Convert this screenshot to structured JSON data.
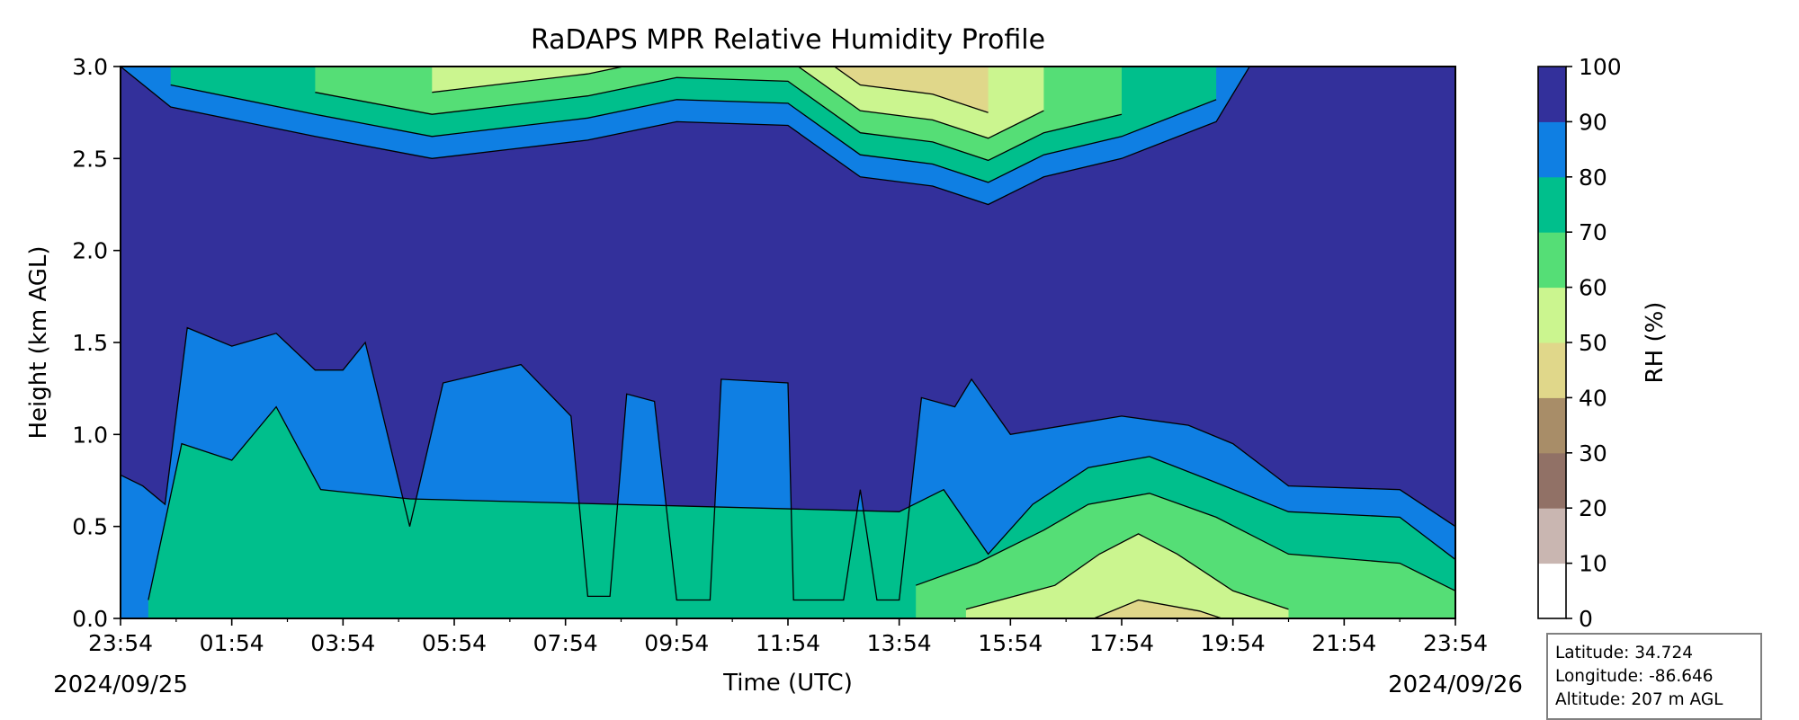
{
  "chart_data": {
    "type": "heatmap",
    "title": "RaDAPS MPR Relative Humidity Profile",
    "xlabel": "Time (UTC)",
    "ylabel": "Height (km AGL)",
    "ylim": [
      0,
      3
    ],
    "y_ticks": [
      "0.0",
      "0.5",
      "1.0",
      "1.5",
      "2.0",
      "2.5",
      "3.0"
    ],
    "x_tick_labels": [
      "23:54",
      "01:54",
      "03:54",
      "05:54",
      "07:54",
      "09:54",
      "11:54",
      "13:54",
      "15:54",
      "17:54",
      "19:54",
      "21:54",
      "23:54"
    ],
    "x_start_date": "2024/09/25",
    "x_end_date": "2024/09/26",
    "x_hours": [
      0,
      2,
      4,
      6,
      8,
      10,
      12,
      14,
      16,
      18,
      20,
      22,
      24
    ],
    "colorbar": {
      "label": "RH (%)",
      "ticks": [
        "0",
        "10",
        "20",
        "30",
        "40",
        "50",
        "60",
        "70",
        "80",
        "90",
        "100"
      ],
      "levels": [
        0,
        10,
        20,
        30,
        40,
        50,
        60,
        70,
        80,
        90,
        100
      ],
      "colors": [
        "#ffffff",
        "#c9b6b1",
        "#917166",
        "#a88d68",
        "#e0d78a",
        "#cbf58f",
        "#55de76",
        "#00bf8c",
        "#0f7fe3",
        "#33309b"
      ]
    },
    "contours": {
      "rh90_bottom": [
        [
          0,
          0.78
        ],
        [
          0.4,
          0.72
        ],
        [
          0.8,
          0.62
        ],
        [
          1.2,
          1.58
        ],
        [
          2.0,
          1.48
        ],
        [
          2.8,
          1.55
        ],
        [
          3.5,
          1.35
        ],
        [
          4.0,
          1.35
        ],
        [
          4.4,
          1.5
        ],
        [
          5.2,
          0.5
        ],
        [
          5.8,
          1.28
        ],
        [
          7.2,
          1.38
        ],
        [
          8.1,
          1.1
        ],
        [
          8.4,
          0.12
        ],
        [
          8.8,
          0.12
        ],
        [
          9.1,
          1.22
        ],
        [
          9.6,
          1.18
        ],
        [
          10.0,
          0.1
        ],
        [
          10.6,
          0.1
        ],
        [
          10.8,
          1.3
        ],
        [
          12.0,
          1.28
        ],
        [
          12.1,
          0.1
        ],
        [
          13.0,
          0.1
        ],
        [
          13.3,
          0.7
        ],
        [
          13.6,
          0.1
        ],
        [
          14.0,
          0.1
        ],
        [
          14.4,
          1.2
        ],
        [
          15.0,
          1.15
        ],
        [
          15.3,
          1.3
        ],
        [
          16.0,
          1.0
        ],
        [
          18.0,
          1.1
        ],
        [
          19.2,
          1.05
        ],
        [
          20.0,
          0.95
        ],
        [
          21.0,
          0.72
        ],
        [
          23.0,
          0.7
        ],
        [
          24.0,
          0.5
        ]
      ],
      "rh90_top": [
        [
          0,
          3.0
        ],
        [
          0.9,
          2.78
        ],
        [
          3.5,
          2.62
        ],
        [
          5.6,
          2.5
        ],
        [
          7.0,
          2.55
        ],
        [
          8.4,
          2.6
        ],
        [
          10.0,
          2.7
        ],
        [
          12.0,
          2.68
        ],
        [
          13.3,
          2.4
        ],
        [
          14.6,
          2.35
        ],
        [
          15.6,
          2.25
        ],
        [
          16.6,
          2.4
        ],
        [
          18.0,
          2.5
        ],
        [
          19.7,
          2.7
        ],
        [
          20.3,
          3.0
        ]
      ],
      "rh80_low": [
        [
          0.5,
          0.1
        ],
        [
          1.1,
          0.95
        ],
        [
          2.0,
          0.86
        ],
        [
          2.8,
          1.15
        ],
        [
          3.6,
          0.7
        ],
        [
          5.2,
          0.65
        ],
        [
          14.0,
          0.58
        ],
        [
          14.8,
          0.7
        ],
        [
          15.6,
          0.35
        ],
        [
          16.4,
          0.62
        ],
        [
          17.4,
          0.82
        ],
        [
          18.5,
          0.88
        ],
        [
          19.6,
          0.75
        ],
        [
          21.0,
          0.58
        ],
        [
          23.0,
          0.55
        ],
        [
          24.0,
          0.32
        ]
      ],
      "rh70_low": [
        [
          14.3,
          0.18
        ],
        [
          15.4,
          0.3
        ],
        [
          16.6,
          0.48
        ],
        [
          17.4,
          0.62
        ],
        [
          18.5,
          0.68
        ],
        [
          19.7,
          0.55
        ],
        [
          21.0,
          0.35
        ],
        [
          23.0,
          0.3
        ],
        [
          24.0,
          0.15
        ]
      ],
      "rh60_low": [
        [
          15.2,
          0.05
        ],
        [
          16.8,
          0.18
        ],
        [
          17.6,
          0.35
        ],
        [
          18.3,
          0.46
        ],
        [
          19.0,
          0.35
        ],
        [
          20.0,
          0.15
        ],
        [
          21.0,
          0.05
        ]
      ],
      "rh50_low": [
        [
          17.5,
          0.0
        ],
        [
          18.3,
          0.1
        ],
        [
          19.4,
          0.04
        ],
        [
          19.8,
          0.0
        ]
      ]
    },
    "info_box": {
      "latitude": "Latitude: 34.724",
      "longitude": "Longitude: -86.646",
      "altitude": "Altitude: 207 m AGL"
    }
  }
}
